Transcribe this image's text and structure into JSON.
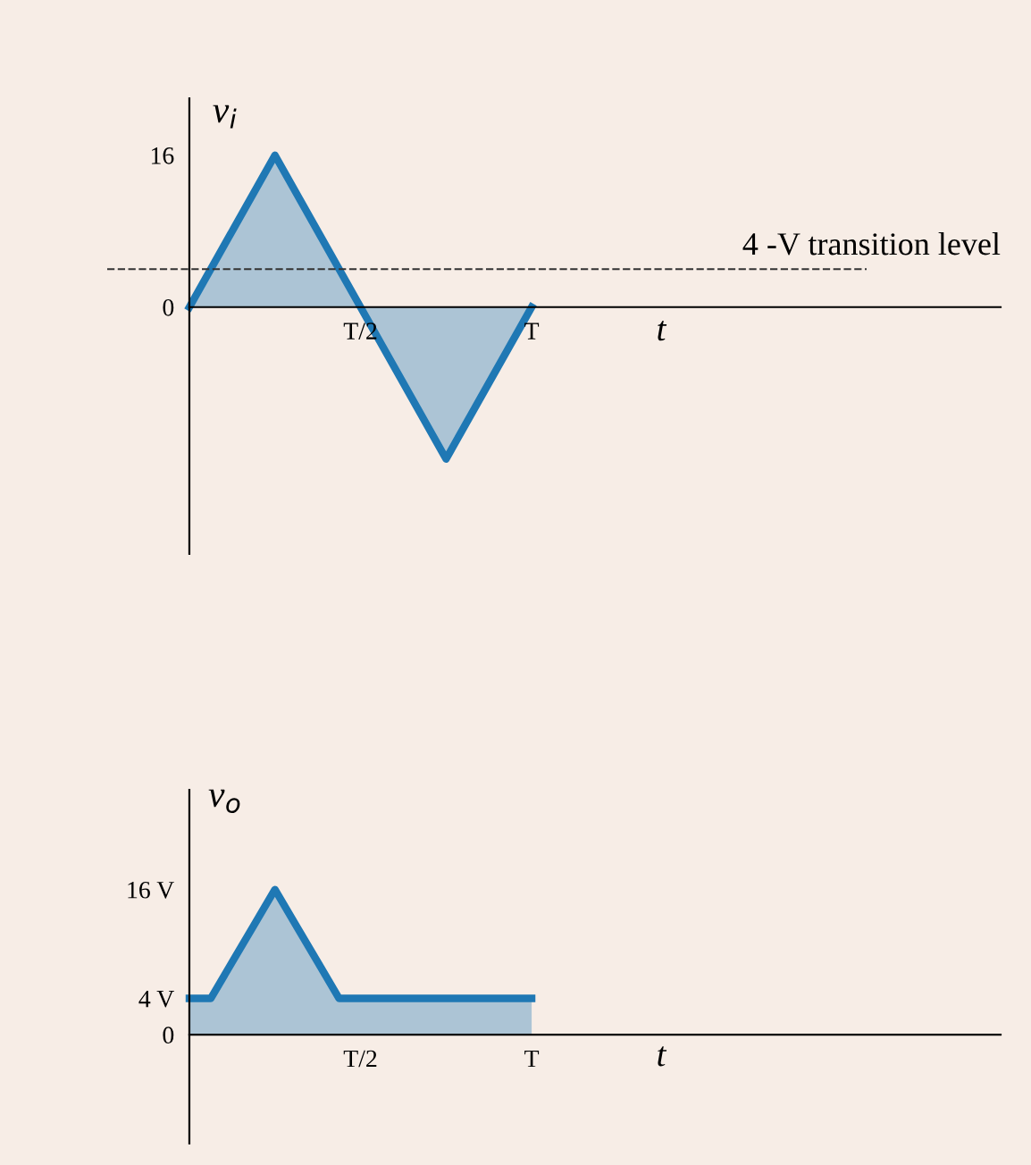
{
  "chart_data": [
    {
      "type": "area",
      "xlabel": "t",
      "ylabel": "v$_{i}$",
      "categories": [
        null,
        null,
        "T/2",
        null,
        "T"
      ],
      "series": [
        {
          "color": "#1f78b4",
          "values": [
            0,
            16,
            0,
            -16,
            0
          ]
        }
      ],
      "ylim": [
        -26,
        22
      ],
      "yticks": [
        0,
        16
      ],
      "ref_lines": [
        {
          "axis": "y",
          "value": 4,
          "label": "4 -V transition level",
          "line_style": "dashed",
          "color": "#333333"
        }
      ],
      "grid": false
    },
    {
      "type": "area",
      "xlabel": "t",
      "ylabel": "v$_{o}$",
      "categories": [
        null,
        null,
        null,
        null,
        null,
        null,
        null,
        null,
        "T/2",
        null,
        null,
        null,
        null,
        null,
        null,
        null,
        "T"
      ],
      "series": [
        {
          "color": "#1f78b4",
          "values": [
            4,
            4,
            8,
            12,
            16,
            12,
            8,
            4,
            4,
            4,
            4,
            4,
            4,
            4,
            4,
            4,
            4
          ]
        }
      ],
      "ylim": [
        -12,
        27
      ],
      "yticks": [
        0,
        {
          "value": 4,
          "label": "4 V"
        },
        {
          "value": 16,
          "label": "16 V"
        }
      ],
      "grid": false
    }
  ]
}
